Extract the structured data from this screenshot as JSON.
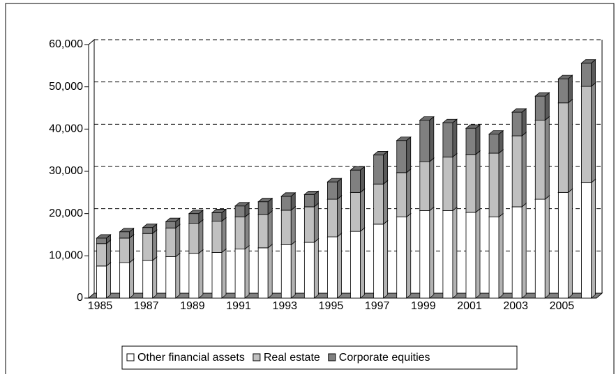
{
  "chart_data": {
    "type": "bar3d-stacked",
    "categories": [
      "1985",
      null,
      "1987",
      null,
      "1989",
      null,
      "1991",
      null,
      "1993",
      null,
      "1995",
      null,
      "1997",
      null,
      "1999",
      null,
      "2001",
      null,
      "2003",
      null,
      "2005",
      null
    ],
    "series": [
      {
        "name": "Other financial assets",
        "color": "#ffffff",
        "values": [
          7600,
          8400,
          8900,
          9800,
          10600,
          10800,
          11600,
          11900,
          12600,
          13200,
          14500,
          15800,
          17500,
          19200,
          20700,
          20700,
          20300,
          19200,
          21600,
          23400,
          25000,
          27300
        ]
      },
      {
        "name": "Real estate",
        "color": "#c0c0c0",
        "values": [
          5300,
          5800,
          6400,
          6800,
          7100,
          7400,
          7600,
          7900,
          8200,
          8400,
          8900,
          9200,
          9500,
          10500,
          11600,
          12700,
          13700,
          15100,
          16800,
          18700,
          21200,
          22800
        ]
      },
      {
        "name": "Corporate equities",
        "color": "#808080",
        "values": [
          1300,
          1500,
          1400,
          1500,
          2300,
          2000,
          2600,
          3000,
          3300,
          2900,
          4100,
          5300,
          6900,
          7600,
          9800,
          8100,
          6200,
          4500,
          5600,
          5700,
          5700,
          5500
        ]
      }
    ],
    "ylim": [
      0,
      60000
    ],
    "yticks": [
      0,
      {
        "value": 10000,
        "label": "10,000"
      },
      {
        "value": 20000,
        "label": "20,000"
      },
      {
        "value": 30000,
        "label": "30,000"
      },
      {
        "value": 40000,
        "label": "40,000"
      },
      {
        "value": 50000,
        "label": "50,000"
      },
      {
        "value": 60000,
        "label": "60,000"
      }
    ],
    "grid": true,
    "legend": "bottom"
  }
}
